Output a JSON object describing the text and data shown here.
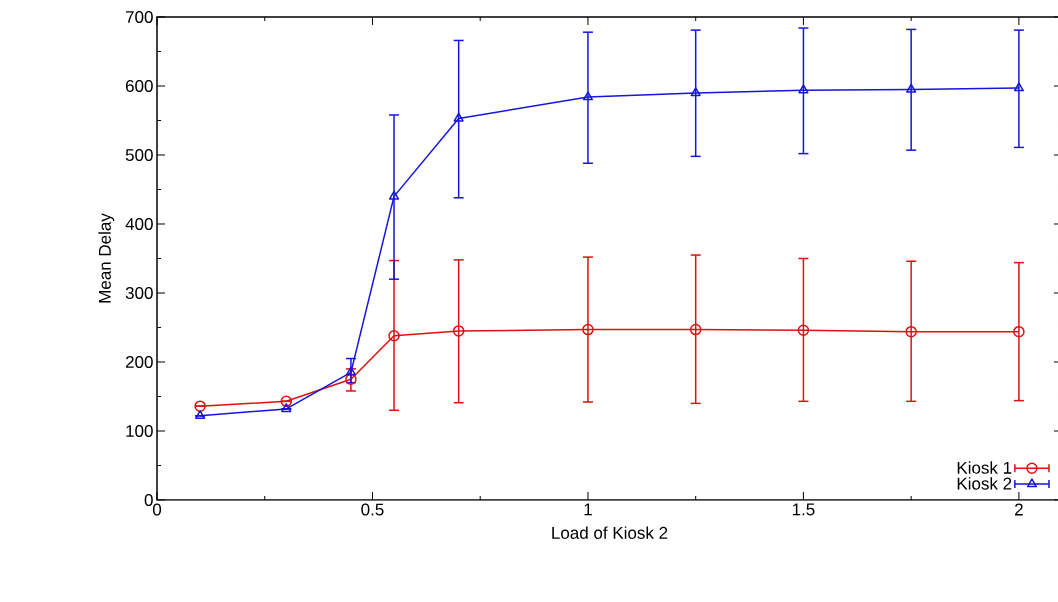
{
  "chart_data": {
    "type": "line",
    "xlabel": "Load of Kiosk 2",
    "ylabel": "Mean Delay",
    "x": [
      0.1,
      0.3,
      0.45,
      0.55,
      0.7,
      1,
      1.25,
      1.5,
      1.75,
      2
    ],
    "series": [
      {
        "name": "Kiosk 1",
        "color": "#dd1111",
        "marker": "circle",
        "values": [
          136,
          143,
          175,
          238,
          245,
          247,
          247,
          246,
          244,
          244
        ],
        "errors": [
          null,
          null,
          [
            158,
            190
          ],
          [
            130,
            347
          ],
          [
            141,
            348
          ],
          [
            142,
            352
          ],
          [
            140,
            355
          ],
          [
            143,
            350
          ],
          [
            143,
            346
          ],
          [
            144,
            344
          ]
        ]
      },
      {
        "name": "Kiosk 2",
        "color": "#1515dd",
        "marker": "triangle",
        "values": [
          122,
          132,
          185,
          440,
          553,
          584,
          590,
          594,
          595,
          597
        ],
        "errors": [
          null,
          null,
          [
            170,
            205
          ],
          [
            320,
            558
          ],
          [
            438,
            666
          ],
          [
            488,
            678
          ],
          [
            498,
            681
          ],
          [
            502,
            684
          ],
          [
            507,
            682
          ],
          [
            511,
            681
          ]
        ]
      }
    ],
    "xlim": [
      0,
      2.1
    ],
    "ylim": [
      0,
      700
    ],
    "xticks": [
      0,
      0.5,
      1,
      1.5,
      2
    ],
    "yticks": [
      0,
      100,
      200,
      300,
      400,
      500,
      600,
      700
    ],
    "legend": "bottom right",
    "line_style": "solid",
    "grid": false
  }
}
